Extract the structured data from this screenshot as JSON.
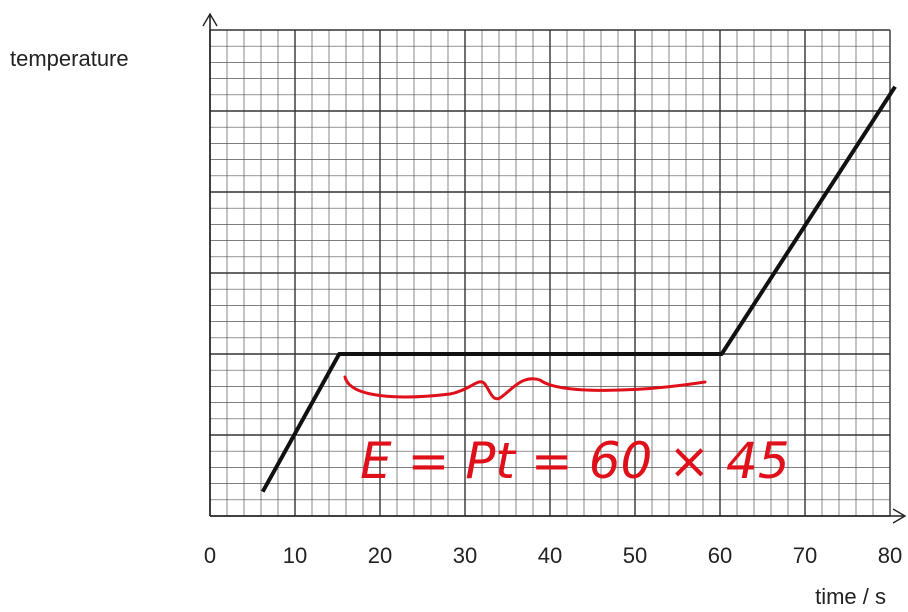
{
  "chart_data": {
    "type": "line",
    "title": "",
    "xlabel": "time / s",
    "ylabel": "temperature",
    "xlim": [
      0,
      80
    ],
    "x_ticks": [
      "0",
      "10",
      "20",
      "30",
      "40",
      "50",
      "60",
      "70",
      "80"
    ],
    "y_ticks": [],
    "grid": true,
    "series": [
      {
        "x": [
          6.2,
          15.2,
          60.2,
          80.6
        ],
        "y": [
          0.3,
          2.0,
          2.0,
          5.3
        ]
      }
    ],
    "annotations": [
      {
        "text": "E = Pt = 60 × 45",
        "color": "#e0101a",
        "style": "handwritten"
      }
    ]
  }
}
